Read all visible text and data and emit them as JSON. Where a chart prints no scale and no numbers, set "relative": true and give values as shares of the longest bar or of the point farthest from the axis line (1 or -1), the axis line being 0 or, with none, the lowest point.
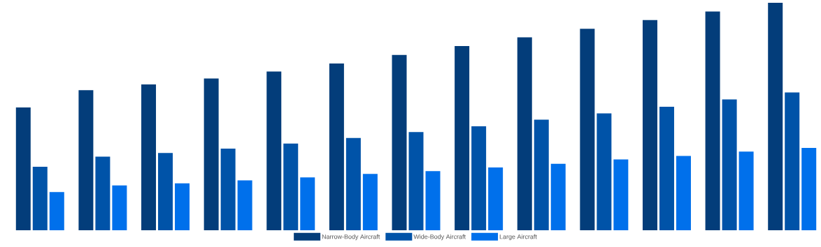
{
  "chart_data": {
    "type": "bar",
    "relative": true,
    "legend": "bottom",
    "categories": [
      null,
      null,
      null,
      null,
      null,
      null,
      null,
      null,
      null,
      null,
      null,
      null,
      null
    ],
    "series": [
      {
        "name": "Narrow-Body Aircraft",
        "color": "#033d7a",
        "values": [
          0.54,
          0.616,
          0.641,
          0.667,
          0.698,
          0.733,
          0.771,
          0.81,
          0.848,
          0.886,
          0.924,
          0.962,
          1.0
        ]
      },
      {
        "name": "Wide-Body Aircraft",
        "color": "#0053a8",
        "values": [
          0.279,
          0.324,
          0.34,
          0.359,
          0.381,
          0.406,
          0.432,
          0.457,
          0.486,
          0.514,
          0.543,
          0.575,
          0.606
        ]
      },
      {
        "name": "Large Aircraft",
        "color": "#0070eb",
        "values": [
          0.168,
          0.197,
          0.206,
          0.219,
          0.232,
          0.248,
          0.26,
          0.276,
          0.292,
          0.311,
          0.327,
          0.346,
          0.362
        ]
      }
    ]
  }
}
